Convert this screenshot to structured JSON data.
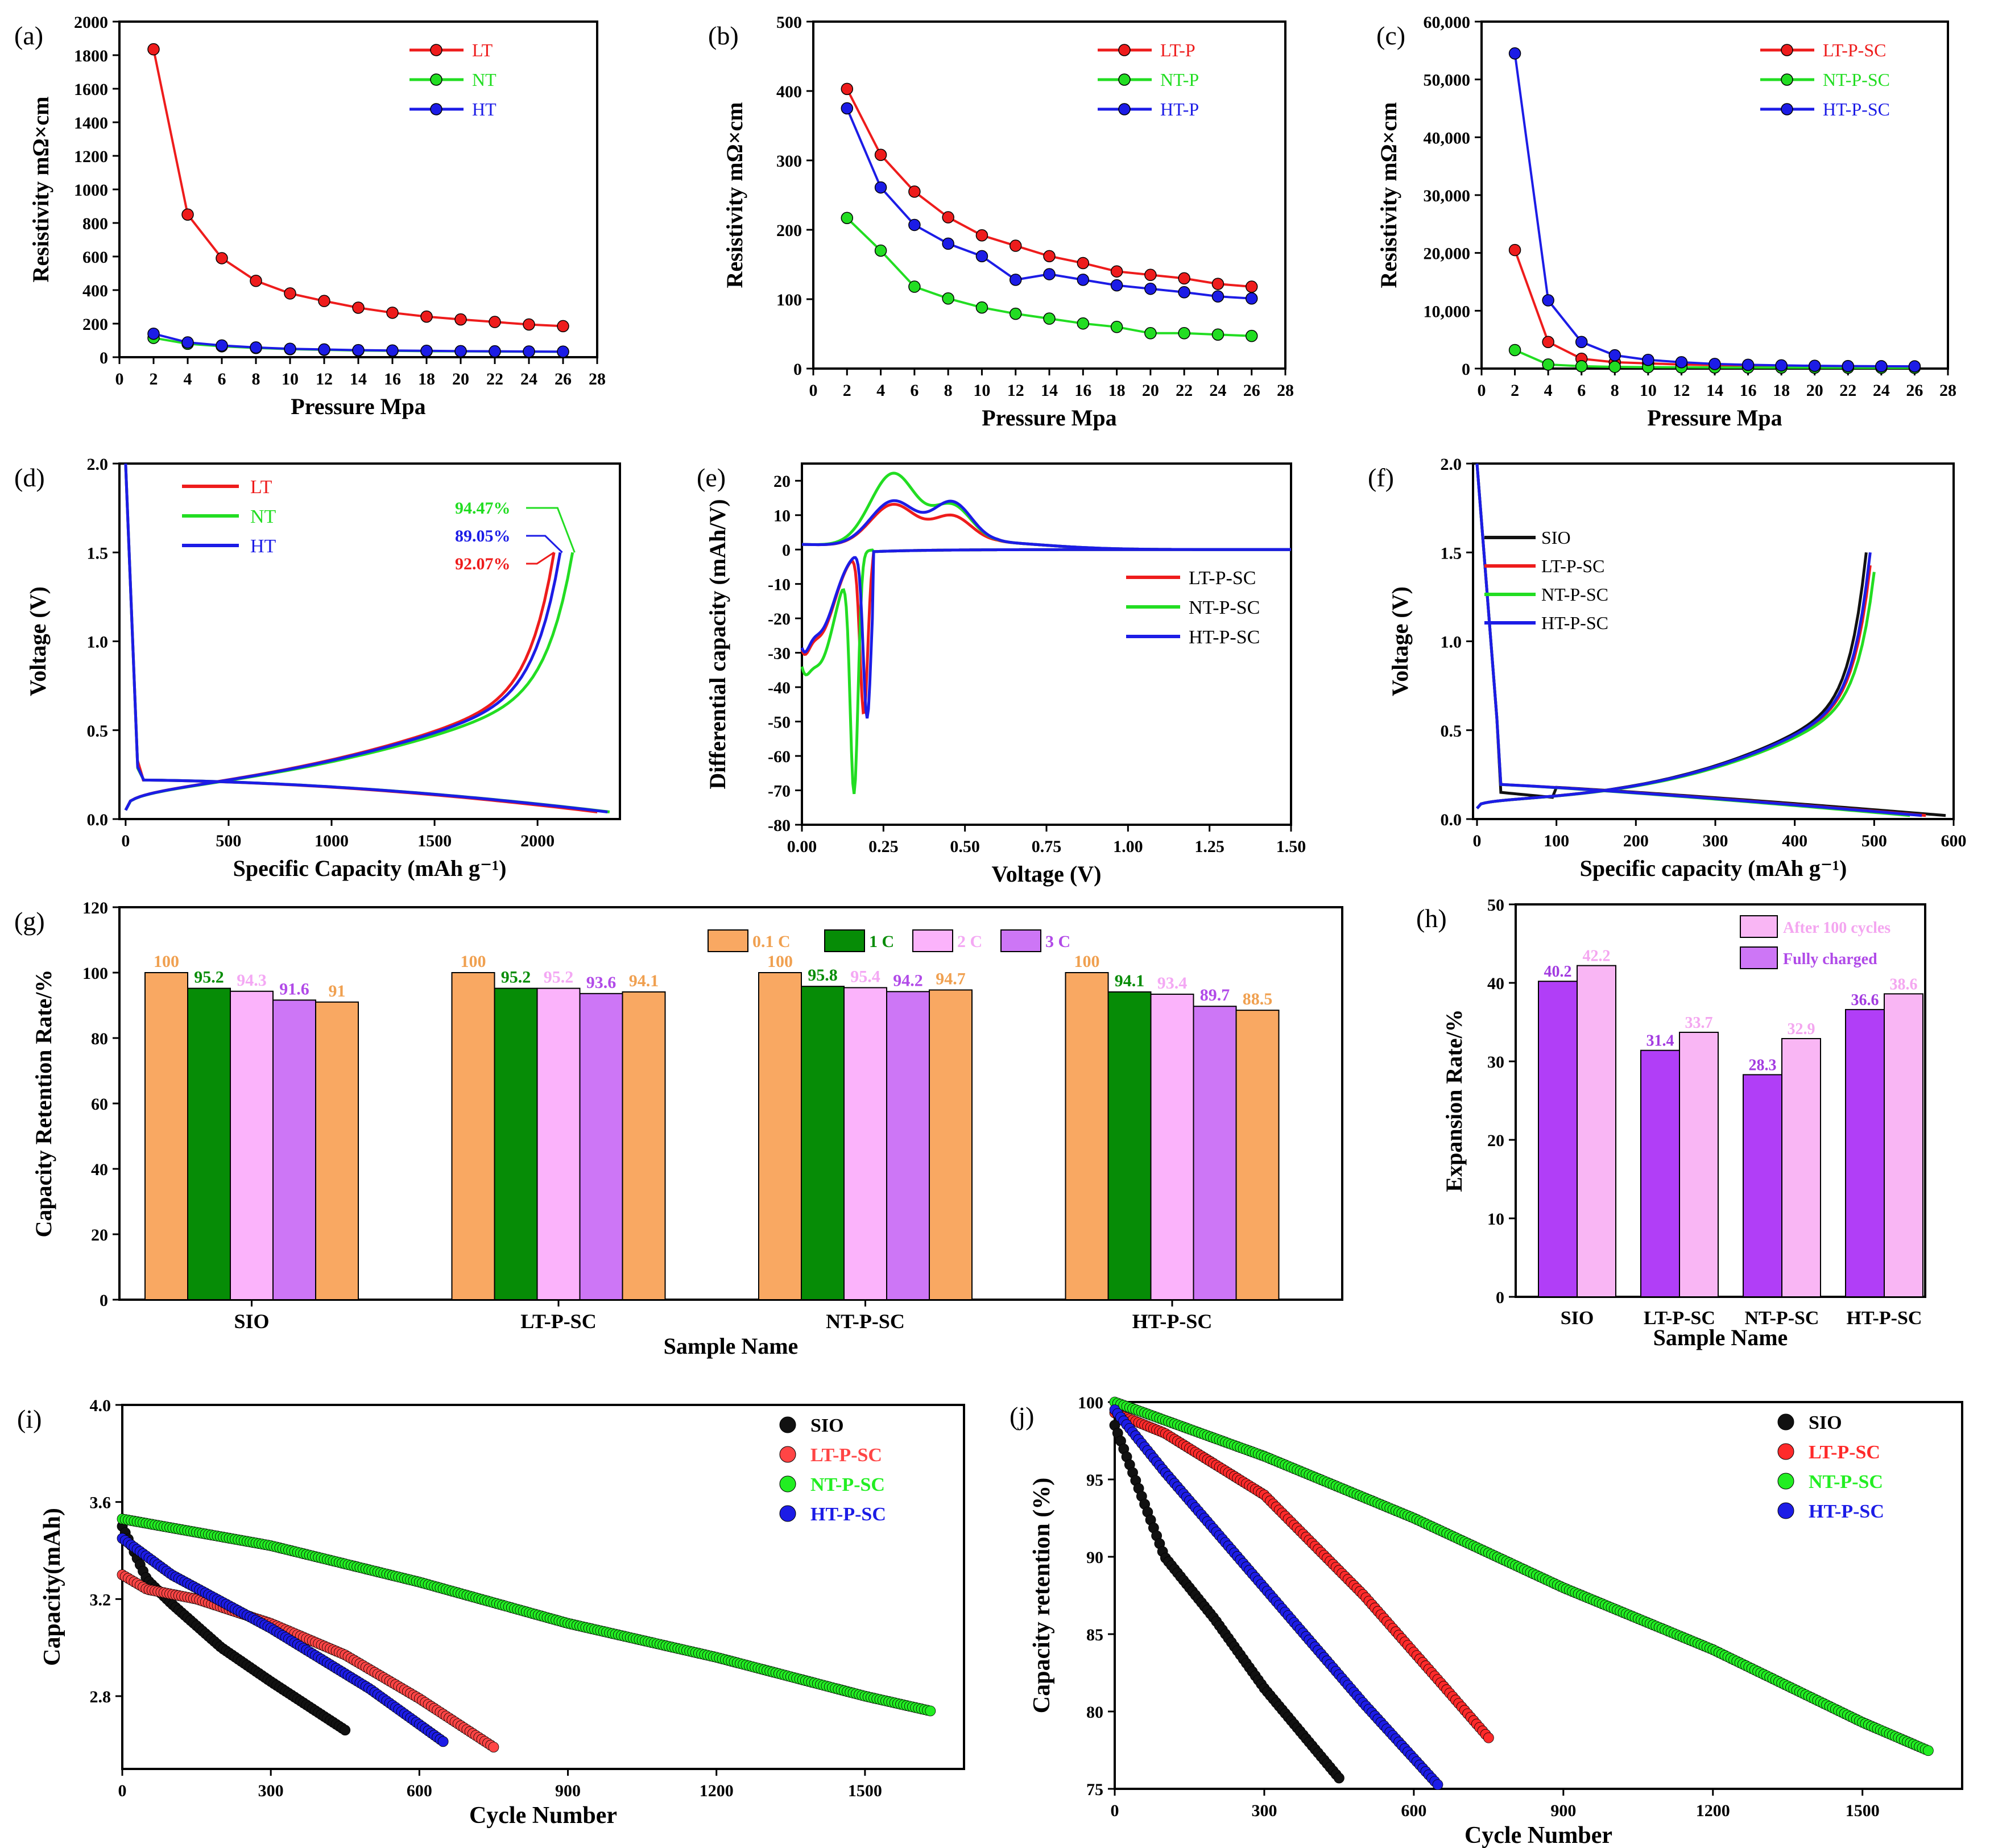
{
  "figure": {
    "description": "Multi-panel figure (a)-(j)"
  },
  "chart_data": [
    {
      "id": "a",
      "panel": "(a)",
      "type": "line",
      "xlabel": "Pressure Mpa",
      "ylabel": "Resistivity mΩ×cm",
      "xlim": [
        0,
        28
      ],
      "ylim": [
        0,
        2000
      ],
      "xticks": [
        0,
        2,
        4,
        6,
        8,
        10,
        12,
        14,
        16,
        18,
        20,
        22,
        24,
        26,
        28
      ],
      "yticks": [
        0,
        200,
        400,
        600,
        800,
        1000,
        1200,
        1400,
        1600,
        1800,
        2000
      ],
      "x": [
        2,
        4,
        6,
        8,
        10,
        12,
        14,
        16,
        18,
        20,
        22,
        24,
        26
      ],
      "series": [
        {
          "name": "LT",
          "color": "#ee1c1c",
          "values": [
            1835,
            850,
            590,
            455,
            380,
            335,
            295,
            265,
            242,
            225,
            210,
            195,
            185
          ]
        },
        {
          "name": "NT",
          "color": "#22dd22",
          "values": [
            115,
            80,
            65,
            55,
            48,
            44,
            40,
            38,
            36,
            35,
            34,
            33,
            32
          ]
        },
        {
          "name": "HT",
          "color": "#1c1ce6",
          "values": [
            140,
            88,
            70,
            58,
            50,
            46,
            42,
            40,
            38,
            36,
            35,
            34,
            33
          ]
        }
      ],
      "legend_position": "top-right"
    },
    {
      "id": "b",
      "panel": "(b)",
      "type": "line",
      "xlabel": "Pressure Mpa",
      "ylabel": "Resistivity mΩ×cm",
      "xlim": [
        0,
        28
      ],
      "ylim": [
        0,
        500
      ],
      "xticks": [
        0,
        2,
        4,
        6,
        8,
        10,
        12,
        14,
        16,
        18,
        20,
        22,
        24,
        26,
        28
      ],
      "yticks": [
        0,
        100,
        200,
        300,
        400,
        500
      ],
      "x": [
        2,
        4,
        6,
        8,
        10,
        12,
        14,
        16,
        18,
        20,
        22,
        24,
        26
      ],
      "series": [
        {
          "name": "LT-P",
          "color": "#ee1c1c",
          "values": [
            403,
            308,
            255,
            218,
            192,
            177,
            162,
            152,
            140,
            135,
            130,
            122,
            118
          ]
        },
        {
          "name": "NT-P",
          "color": "#22dd22",
          "values": [
            217,
            170,
            118,
            101,
            88,
            79,
            72,
            65,
            60,
            51,
            51,
            49,
            47
          ]
        },
        {
          "name": "HT-P",
          "color": "#1c1ce6",
          "values": [
            375,
            261,
            207,
            180,
            162,
            128,
            136,
            128,
            120,
            115,
            110,
            104,
            101
          ]
        }
      ],
      "legend_position": "top-right"
    },
    {
      "id": "c",
      "panel": "(c)",
      "type": "line",
      "xlabel": "Pressure Mpa",
      "ylabel": "Resistivity mΩ×cm",
      "xlim": [
        0,
        28
      ],
      "ylim": [
        0,
        60000
      ],
      "xticks": [
        0,
        2,
        4,
        6,
        8,
        10,
        12,
        14,
        16,
        18,
        20,
        22,
        24,
        26,
        28
      ],
      "yticks": [
        0,
        10000,
        20000,
        30000,
        40000,
        50000,
        60000
      ],
      "ytick_labels": [
        "0",
        "10,000",
        "20,000",
        "30,000",
        "40,000",
        "50,000",
        "60,000"
      ],
      "x": [
        2,
        4,
        6,
        8,
        10,
        12,
        14,
        16,
        18,
        20,
        22,
        24,
        26
      ],
      "series": [
        {
          "name": "LT-P-SC",
          "color": "#ee1c1c",
          "values": [
            20500,
            4600,
            1700,
            1100,
            900,
            700,
            600,
            500,
            450,
            400,
            380,
            360,
            340
          ]
        },
        {
          "name": "NT-P-SC",
          "color": "#22dd22",
          "values": [
            3200,
            700,
            400,
            300,
            250,
            220,
            200,
            180,
            170,
            160,
            150,
            140,
            130
          ]
        },
        {
          "name": "HT-P-SC",
          "color": "#1c1ce6",
          "values": [
            54500,
            11800,
            4600,
            2300,
            1500,
            1100,
            800,
            650,
            550,
            480,
            430,
            400,
            380
          ]
        }
      ],
      "legend_position": "top-right"
    },
    {
      "id": "d",
      "panel": "(d)",
      "type": "line",
      "xlabel": "Specific Capacity (mAh g⁻¹)",
      "ylabel": "Voltage (V)",
      "xlim": [
        -30,
        2400
      ],
      "ylim": [
        0,
        2.0
      ],
      "xticks": [
        0,
        500,
        1000,
        1500,
        2000
      ],
      "yticks": [
        0,
        0.5,
        1.0,
        1.5,
        2.0
      ],
      "ytick_labels": [
        "0.0",
        "0.5",
        "1.0",
        "1.5",
        "2.0"
      ],
      "series": [
        {
          "name": "LT",
          "color": "#ee1c1c"
        },
        {
          "name": "NT",
          "color": "#22dd22"
        },
        {
          "name": "HT",
          "color": "#1c1ce6"
        }
      ],
      "annotations": [
        {
          "text": "94.47%",
          "color": "#22dd22"
        },
        {
          "text": "89.05%",
          "color": "#1c1ce6"
        },
        {
          "text": "92.07%",
          "color": "#ee1c1c"
        }
      ],
      "legend_position": "top-left"
    },
    {
      "id": "e",
      "panel": "(e)",
      "type": "line",
      "xlabel": "Voltage (V)",
      "ylabel": "Differential capacity (mAh/V)",
      "xlim": [
        0,
        1.5
      ],
      "ylim": [
        -80,
        25
      ],
      "xticks": [
        0,
        0.25,
        0.5,
        0.75,
        1.0,
        1.25,
        1.5
      ],
      "xtick_labels": [
        "0.00",
        "0.25",
        "0.50",
        "0.75",
        "1.00",
        "1.25",
        "1.50"
      ],
      "yticks": [
        -80,
        -70,
        -60,
        -50,
        -40,
        -30,
        -20,
        -10,
        0,
        10,
        20
      ],
      "series": [
        {
          "name": "LT-P-SC",
          "color": "#ee1c1c"
        },
        {
          "name": "NT-P-SC",
          "color": "#22dd22"
        },
        {
          "name": "HT-P-SC",
          "color": "#1c1ce6"
        }
      ],
      "legend_position": "center-right"
    },
    {
      "id": "f",
      "panel": "(f)",
      "type": "line",
      "xlabel": "Specific capacity (mAh g⁻¹)",
      "ylabel": "Voltage (V)",
      "xlim": [
        -5,
        600
      ],
      "ylim": [
        0,
        2.0
      ],
      "xticks": [
        0,
        100,
        200,
        300,
        400,
        500,
        600
      ],
      "yticks": [
        0,
        0.5,
        1.0,
        1.5,
        2.0
      ],
      "ytick_labels": [
        "0.0",
        "0.5",
        "1.0",
        "1.5",
        "2.0"
      ],
      "series": [
        {
          "name": "SIO",
          "color": "#111111"
        },
        {
          "name": "LT-P-SC",
          "color": "#ee1c1c"
        },
        {
          "name": "NT-P-SC",
          "color": "#22dd22"
        },
        {
          "name": "HT-P-SC",
          "color": "#1c1ce6"
        }
      ],
      "legend_position": "middle-left"
    },
    {
      "id": "g",
      "panel": "(g)",
      "type": "bar",
      "xlabel": "Sample Name",
      "ylabel": "Capacity Retention Rate/%",
      "ylim": [
        0,
        120
      ],
      "yticks": [
        0,
        20,
        40,
        60,
        80,
        100,
        120
      ],
      "categories": [
        "SIO",
        "LT-P-SC",
        "NT-P-SC",
        "HT-P-SC"
      ],
      "series": [
        {
          "name": "0.1 C",
          "color": "#f9a862",
          "label_color": "#f0a050",
          "values": [
            100,
            100,
            100,
            100
          ]
        },
        {
          "name": "1 C",
          "color": "#068c06",
          "label_color": "#068c06",
          "values": [
            95.2,
            95.2,
            95.8,
            94.1
          ]
        },
        {
          "name": "2 C",
          "color": "#fbb3fb",
          "label_color": "#f4a8f4",
          "values": [
            94.3,
            95.2,
            95.4,
            93.4
          ]
        },
        {
          "name": "3 C",
          "color": "#cd76f6",
          "label_color": "#b14ae8",
          "values": [
            91.6,
            93.6,
            94.2,
            89.7
          ]
        },
        {
          "name": "",
          "color": "#f9a862",
          "label_color": "#f0a050",
          "values": [
            91,
            94.1,
            94.7,
            88.5
          ]
        }
      ],
      "value_labels": [
        [
          "100",
          "95.2",
          "94.3",
          "91.6",
          "91"
        ],
        [
          "100",
          "95.2",
          "95.2",
          "93.6",
          "94.1"
        ],
        [
          "100",
          "95.8",
          "95.4",
          "94.2",
          "94.7"
        ],
        [
          "100",
          "94.1",
          "93.4",
          "89.7",
          "88.5"
        ]
      ],
      "legend_position": "top"
    },
    {
      "id": "h",
      "panel": "(h)",
      "type": "bar",
      "xlabel": "Sample Name",
      "ylabel": "Expansion Rate/%",
      "ylim": [
        0,
        50
      ],
      "yticks": [
        0,
        10,
        20,
        30,
        40,
        50
      ],
      "categories": [
        "SIO",
        "LT-P-SC",
        "NT-P-SC",
        "HT-P-SC"
      ],
      "series": [
        {
          "name": "Fully charged",
          "color": "#b13ef7",
          "label_color": "#a23be0",
          "values": [
            40.2,
            31.4,
            28.3,
            36.6
          ]
        },
        {
          "name": "After 100 cycles",
          "color": "#f9b6f4",
          "label_color": "#f4a6f0",
          "values": [
            42.2,
            33.7,
            32.9,
            38.6
          ]
        }
      ],
      "value_labels": [
        [
          "40.2",
          "42.2"
        ],
        [
          "31.4",
          "33.7"
        ],
        [
          "28.3",
          "32.9"
        ],
        [
          "36.6",
          "38.6"
        ]
      ],
      "legend_entries": [
        "After 100 cycles",
        "Fully charged"
      ],
      "legend_position": "top-right"
    },
    {
      "id": "i",
      "panel": "(i)",
      "type": "scatter",
      "xlabel": "Cycle Number",
      "ylabel": "Capacity(mAh)",
      "xlim": [
        0,
        1700
      ],
      "ylim": [
        2.5,
        4.0
      ],
      "xticks": [
        0,
        300,
        600,
        900,
        1200,
        1500
      ],
      "yticks": [
        2.8,
        3.2,
        3.6,
        4.0
      ],
      "ytick_labels": [
        "2.8",
        "3.2",
        "3.6",
        "4.0"
      ],
      "series": [
        {
          "name": "SIO",
          "color": "#111111",
          "x": [
            0,
            50,
            100,
            200,
            300,
            450
          ],
          "values": [
            3.5,
            3.28,
            3.18,
            3.0,
            2.86,
            2.66
          ]
        },
        {
          "name": "LT-P-SC",
          "color": "#ff4545",
          "x": [
            0,
            50,
            150,
            300,
            450,
            600,
            750
          ],
          "values": [
            3.3,
            3.24,
            3.2,
            3.1,
            2.97,
            2.79,
            2.59
          ]
        },
        {
          "name": "NT-P-SC",
          "color": "#22ee22",
          "x": [
            0,
            300,
            600,
            900,
            1200,
            1500,
            1630
          ],
          "values": [
            3.53,
            3.42,
            3.27,
            3.1,
            2.96,
            2.8,
            2.74
          ]
        },
        {
          "name": "HT-P-SC",
          "color": "#1c1ce6",
          "x": [
            0,
            100,
            300,
            500,
            650
          ],
          "values": [
            3.45,
            3.3,
            3.08,
            2.83,
            2.61
          ]
        }
      ],
      "legend_position": "top-right"
    },
    {
      "id": "j",
      "panel": "(j)",
      "type": "scatter",
      "xlabel": "Cycle Number",
      "ylabel": "Capacity retention (%)",
      "xlim": [
        0,
        1700
      ],
      "ylim": [
        75,
        100
      ],
      "xticks": [
        0,
        300,
        600,
        900,
        1200,
        1500
      ],
      "yticks": [
        75,
        80,
        85,
        90,
        95,
        100
      ],
      "series": [
        {
          "name": "SIO",
          "color": "#111111",
          "x": [
            0,
            100,
            200,
            300,
            450
          ],
          "values": [
            98.5,
            90,
            86,
            81.5,
            75.7
          ]
        },
        {
          "name": "LT-P-SC",
          "color": "#ff2a2a",
          "x": [
            0,
            100,
            300,
            500,
            650,
            750
          ],
          "values": [
            99.3,
            98,
            94,
            87.5,
            82,
            78.3
          ]
        },
        {
          "name": "NT-P-SC",
          "color": "#22ee22",
          "x": [
            0,
            300,
            600,
            900,
            1200,
            1500,
            1630
          ],
          "values": [
            100,
            96.5,
            92.5,
            88,
            84,
            79.3,
            77.5
          ]
        },
        {
          "name": "HT-P-SC",
          "color": "#1c1ce6",
          "x": [
            0,
            100,
            300,
            500,
            650
          ],
          "values": [
            99.5,
            95.5,
            88,
            80.5,
            75.2
          ]
        }
      ],
      "legend_position": "top-right"
    }
  ]
}
